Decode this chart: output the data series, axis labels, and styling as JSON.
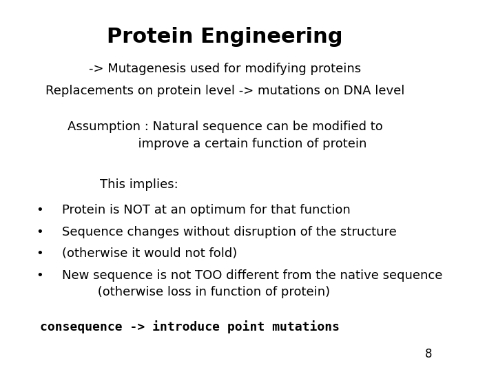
{
  "title": "Protein Engineering",
  "subtitle_line1": "-> Mutagenesis used for modifying proteins",
  "subtitle_line2": "Replacements on protein level -> mutations on DNA level",
  "assumption": "Assumption : Natural sequence can be modified to\n              improve a certain function of protein",
  "implies_header": "    This implies:",
  "bullets": [
    "Protein is NOT at an optimum for that function",
    "Sequence changes without disruption of the structure",
    "(otherwise it would not fold)",
    "New sequence is not TOO different from the native sequence\n         (otherwise loss in function of protein)"
  ],
  "consequence": "consequence -> introduce point mutations",
  "page_number": "8",
  "bg_color": "#ffffff",
  "text_color": "#000000",
  "font_family": "serif",
  "title_fontsize": 22,
  "body_fontsize": 13,
  "consequence_fontsize": 13
}
